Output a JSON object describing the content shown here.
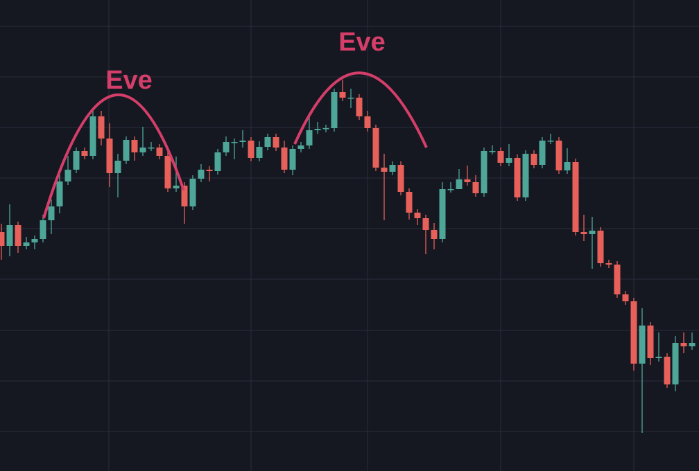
{
  "chart_data": {
    "type": "candlestick",
    "annotations": [
      "Eve",
      "Eve"
    ],
    "x": [
      2,
      14,
      26,
      38,
      50,
      62,
      74,
      86,
      98,
      110,
      122,
      134,
      146,
      158,
      170,
      182,
      194,
      206,
      218,
      230,
      242,
      254,
      266,
      278,
      290,
      302,
      314,
      326,
      338,
      350,
      362,
      374,
      386,
      398,
      410,
      422,
      434,
      446,
      458,
      470,
      482,
      494,
      506,
      518,
      530,
      542,
      554,
      566,
      578,
      590,
      602,
      614,
      626,
      638,
      650,
      662,
      674,
      686,
      698,
      710,
      722,
      734,
      746,
      758,
      770,
      782,
      794,
      806,
      818,
      830,
      842,
      854,
      866,
      878,
      890,
      902,
      914,
      926,
      938,
      950,
      962,
      974,
      986,
      998
    ],
    "open": [
      345,
      325,
      355,
      325,
      330,
      335,
      362,
      382,
      418,
      435,
      462,
      455,
      512,
      480,
      430,
      448,
      478,
      460,
      467,
      467,
      455,
      408,
      412,
      382,
      422,
      435,
      433,
      460,
      475,
      475,
      477,
      452,
      468,
      482,
      467,
      435,
      465,
      470,
      492,
      494,
      495,
      547,
      539,
      539,
      512,
      495,
      438,
      432,
      442,
      403,
      373,
      365,
      348,
      335,
      407,
      407,
      421,
      417,
      401,
      462,
      462,
      445,
      452,
      395,
      458,
      442,
      477,
      477,
      434,
      446,
      345,
      342,
      347,
      300,
      298,
      255,
      245,
      155,
      210,
      163,
      165,
      125,
      185,
      180
    ],
    "high": [
      357,
      385,
      360,
      338,
      340,
      370,
      392,
      430,
      455,
      467,
      467,
      522,
      520,
      502,
      458,
      483,
      483,
      497,
      475,
      472,
      463,
      454,
      417,
      427,
      443,
      440,
      465,
      483,
      480,
      492,
      482,
      476,
      487,
      487,
      477,
      470,
      475,
      517,
      504,
      500,
      552,
      565,
      552,
      544,
      520,
      500,
      458,
      447,
      447,
      408,
      378,
      370,
      358,
      417,
      417,
      436,
      441,
      427,
      467,
      470,
      467,
      472,
      457,
      463,
      463,
      482,
      487,
      482,
      466,
      451,
      370,
      367,
      352,
      305,
      303,
      260,
      250,
      235,
      215,
      200,
      170,
      195,
      200,
      200
    ],
    "low": [
      305,
      310,
      315,
      320,
      320,
      330,
      342,
      372,
      413,
      430,
      450,
      450,
      470,
      410,
      395,
      443,
      448,
      455,
      462,
      450,
      403,
      403,
      357,
      377,
      417,
      418,
      428,
      455,
      450,
      467,
      447,
      447,
      463,
      462,
      430,
      427,
      460,
      465,
      487,
      489,
      490,
      534,
      524,
      507,
      490,
      433,
      362,
      427,
      398,
      363,
      355,
      313,
      320,
      330,
      402,
      412,
      412,
      396,
      396,
      457,
      440,
      440,
      390,
      390,
      437,
      437,
      472,
      429,
      429,
      340,
      332,
      292,
      295,
      293,
      250,
      240,
      145,
      55,
      153,
      158,
      120,
      115,
      170,
      175
    ],
    "close": [
      325,
      355,
      325,
      330,
      335,
      362,
      382,
      418,
      435,
      462,
      455,
      512,
      480,
      430,
      448,
      478,
      460,
      467,
      467,
      455,
      408,
      412,
      382,
      422,
      435,
      433,
      460,
      475,
      475,
      477,
      452,
      468,
      482,
      467,
      435,
      465,
      470,
      492,
      494,
      495,
      547,
      539,
      539,
      512,
      495,
      438,
      432,
      442,
      403,
      373,
      365,
      348,
      335,
      407,
      407,
      421,
      417,
      401,
      462,
      462,
      445,
      452,
      395,
      458,
      442,
      477,
      477,
      434,
      446,
      345,
      342,
      347,
      300,
      298,
      255,
      245,
      155,
      210,
      163,
      165,
      125,
      185,
      180,
      185
    ],
    "up_color": "#4ea699",
    "down_color": "#e8605a",
    "xlim": [
      0,
      1008
    ],
    "ylim": [
      0,
      680
    ],
    "xticks": [
      157,
      362,
      530,
      722,
      914
    ],
    "yticks": [
      642,
      569,
      496,
      423,
      350,
      277,
      203,
      130,
      57
    ],
    "grid": true
  }
}
